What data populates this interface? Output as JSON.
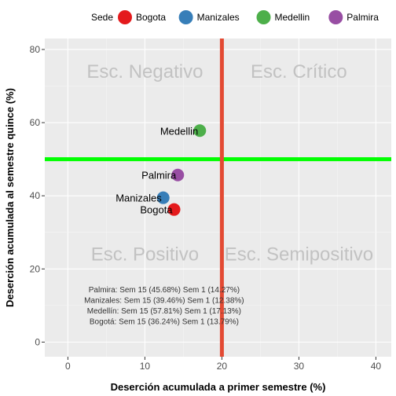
{
  "chart_data": {
    "type": "scatter",
    "xlabel": "Deserción acumulada a primer semestre (%)",
    "ylabel": "Deserción acumulada al semestre quince (%)",
    "xlim": [
      -3,
      42
    ],
    "ylim": [
      -4,
      83
    ],
    "xticks": [
      0,
      10,
      20,
      30,
      40
    ],
    "yticks": [
      0,
      20,
      40,
      60,
      80
    ],
    "grid": true,
    "legend": {
      "title": "Sede",
      "position": "top",
      "entries": [
        {
          "name": "Bogota",
          "color": "#e41a1c"
        },
        {
          "name": "Manizales",
          "color": "#377eb8"
        },
        {
          "name": "Medellin",
          "color": "#4daf4a"
        },
        {
          "name": "Palmira",
          "color": "#984ea3"
        }
      ]
    },
    "points": [
      {
        "label": "Bogota",
        "x": 13.79,
        "y": 36.24,
        "color": "#e41a1c"
      },
      {
        "label": "Manizales",
        "x": 12.38,
        "y": 39.46,
        "color": "#377eb8"
      },
      {
        "label": "Medellin",
        "x": 17.13,
        "y": 57.81,
        "color": "#4daf4a"
      },
      {
        "label": "Palmira",
        "x": 14.27,
        "y": 45.68,
        "color": "#984ea3"
      }
    ],
    "reference_lines": {
      "vertical": {
        "x": 20,
        "color": "#e34a33"
      },
      "horizontal": {
        "y": 50,
        "color": "#00ff00"
      }
    },
    "quadrant_labels": [
      {
        "text": "Esc. Negativo",
        "x": 10,
        "y": 74
      },
      {
        "text": "Esc. Crítico",
        "x": 30,
        "y": 74
      },
      {
        "text": "Esc. Positivo",
        "x": 10,
        "y": 24
      },
      {
        "text": "Esc. Semipositivo",
        "x": 30,
        "y": 24
      }
    ],
    "annotations": [
      "Palmira: Sem 15 (45.68%) Sem 1 (14.27%)",
      "Manizales: Sem 15 (39.46%) Sem 1 (12.38%)",
      "Medellín: Sem 15 (57.81%) Sem 1 (17.13%)",
      "Bogotá: Sem 15 (36.24%) Sem 1 (13.79%)"
    ]
  }
}
